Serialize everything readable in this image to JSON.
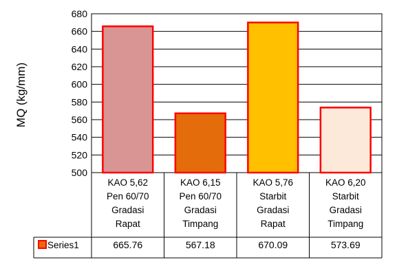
{
  "chart_data": {
    "type": "bar",
    "ylabel": "MQ (kg/mm)",
    "ylim": [
      500,
      680
    ],
    "ytick_step": 20,
    "grid": true,
    "categories": [
      [
        "KAO 5,62",
        "Pen 60/70",
        "Gradasi",
        "Rapat"
      ],
      [
        "KAO 6,15",
        "Pen 60/70",
        "Gradasi",
        "Timpang"
      ],
      [
        "KAO 5,76",
        "Starbit",
        "Gradasi",
        "Rapat"
      ],
      [
        "KAO 6,20",
        "Starbit",
        "Gradasi",
        "Timpang"
      ]
    ],
    "series": [
      {
        "name": "Series1",
        "values": [
          665.76,
          567.18,
          670.09,
          573.69
        ],
        "value_labels": [
          "665.76",
          "567.18",
          "670.09",
          "573.69"
        ]
      }
    ],
    "bar_colors": [
      "#D99594",
      "#E46C0A",
      "#FFC000",
      "#FDE9D9"
    ],
    "bar_border_color": "#FF0000",
    "legend_marker_color": "#E46C0A",
    "legend_placement": "data-table"
  }
}
